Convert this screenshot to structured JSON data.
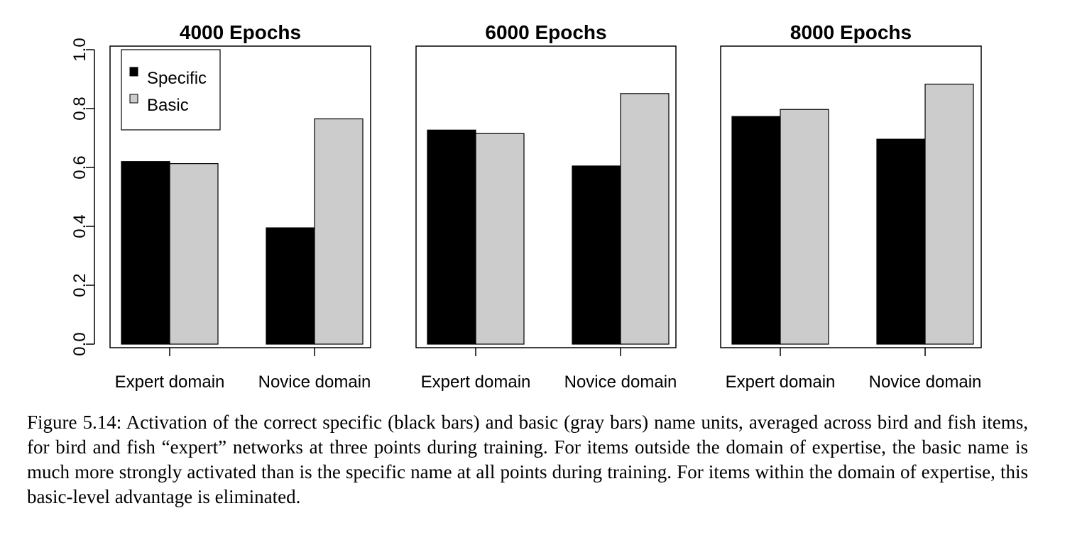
{
  "chart_data": {
    "type": "bar",
    "layout": "three side-by-side panels sharing a y axis",
    "ylim": [
      0,
      1
    ],
    "yticks": [
      "0.0",
      "0.2",
      "0.4",
      "0.6",
      "0.8",
      "1.0"
    ],
    "xlabel": "",
    "ylabel": "",
    "legend": {
      "placement": "top-left of first panel",
      "entries": [
        {
          "name": "Specific",
          "color": "#000000"
        },
        {
          "name": "Basic",
          "color": "#cccccc"
        }
      ]
    },
    "categories": [
      "Expert domain",
      "Novice domain"
    ],
    "panels": [
      {
        "title": "4000 Epochs",
        "series": [
          {
            "name": "Specific",
            "values": [
              0.62,
              0.395
            ]
          },
          {
            "name": "Basic",
            "values": [
              0.613,
              0.765
            ]
          }
        ]
      },
      {
        "title": "6000 Epochs",
        "series": [
          {
            "name": "Specific",
            "values": [
              0.727,
              0.605
            ]
          },
          {
            "name": "Basic",
            "values": [
              0.715,
              0.851
            ]
          }
        ]
      },
      {
        "title": "8000 Epochs",
        "series": [
          {
            "name": "Specific",
            "values": [
              0.773,
              0.696
            ]
          },
          {
            "name": "Basic",
            "values": [
              0.797,
              0.883
            ]
          }
        ]
      }
    ]
  },
  "caption": "Figure 5.14: Activation of the correct specific (black bars) and basic (gray bars) name units, averaged across bird and fish items, for bird and fish “expert” networks at three points during training. For items outside the domain of expertise, the basic name is much more strongly activated than is the specific name at all points during training. For items within the domain of expertise, this basic-level advantage is eliminated."
}
